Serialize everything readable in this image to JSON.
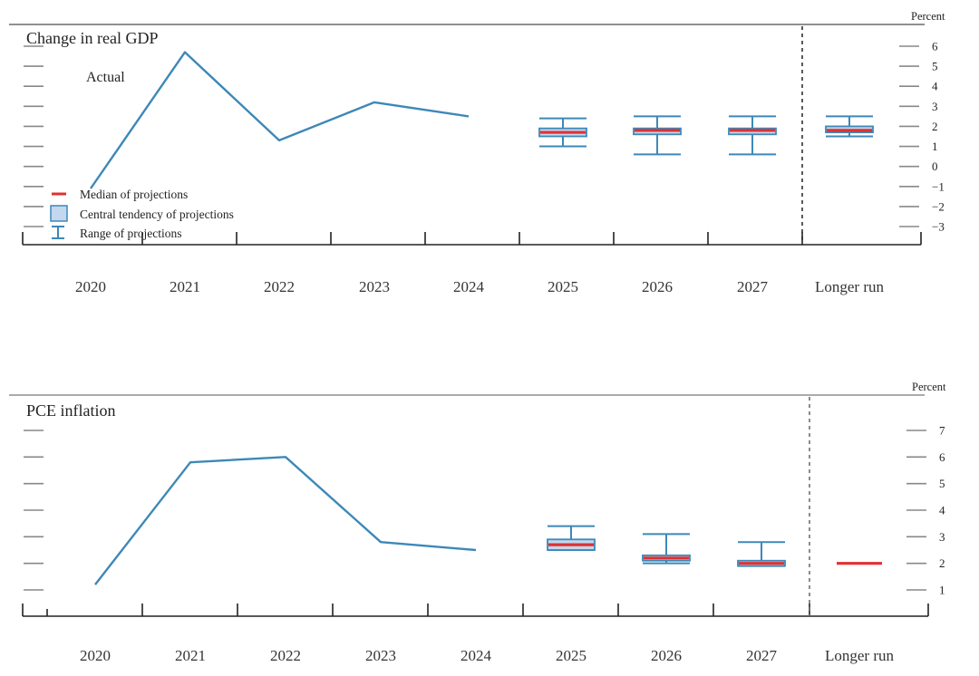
{
  "colors": {
    "line": "#3d88b8",
    "median": "#e03131",
    "box_fill": "#c3d7ee",
    "box_stroke": "#3d88b8",
    "axis": "#222222",
    "gridtick": "#888888"
  },
  "legend": {
    "median_label": "Median of projections",
    "central_label": "Central tendency of projections",
    "range_label": "Range of projections"
  },
  "chart_data": [
    {
      "type": "line",
      "title": "Change in real GDP",
      "unit_label": "Percent",
      "annotation": "Actual",
      "categories": [
        "2020",
        "2021",
        "2022",
        "2023",
        "2024",
        "2025",
        "2026",
        "2027",
        "Longer run"
      ],
      "ylim": [
        -3,
        6
      ],
      "yticks": [
        6,
        5,
        4,
        3,
        2,
        1,
        0,
        -1,
        -2,
        -3
      ],
      "ytick_labels": [
        "6",
        "5",
        "4",
        "3",
        "2",
        "1",
        "0",
        "−1",
        "−2",
        "−3"
      ],
      "actual": [
        -1.1,
        5.7,
        1.3,
        3.2,
        2.5
      ],
      "projections": [
        {
          "category": "2025",
          "median": 1.7,
          "central": [
            1.5,
            1.9
          ],
          "range": [
            1.0,
            2.4
          ]
        },
        {
          "category": "2026",
          "median": 1.8,
          "central": [
            1.6,
            1.9
          ],
          "range": [
            0.6,
            2.5
          ]
        },
        {
          "category": "2027",
          "median": 1.8,
          "central": [
            1.6,
            1.9
          ],
          "range": [
            0.6,
            2.5
          ]
        },
        {
          "category": "Longer run",
          "median": 1.8,
          "central": [
            1.7,
            2.0
          ],
          "range": [
            1.5,
            2.5
          ]
        }
      ],
      "legend_position": "bottom-left"
    },
    {
      "type": "line",
      "title": "PCE inflation",
      "unit_label": "Percent",
      "categories": [
        "2020",
        "2021",
        "2022",
        "2023",
        "2024",
        "2025",
        "2026",
        "2027",
        "Longer run"
      ],
      "ylim": [
        1,
        7
      ],
      "yticks": [
        7,
        6,
        5,
        4,
        3,
        2,
        1
      ],
      "ytick_labels": [
        "7",
        "6",
        "5",
        "4",
        "3",
        "2",
        "1"
      ],
      "actual": [
        1.2,
        5.8,
        6.0,
        2.8,
        2.5
      ],
      "projections": [
        {
          "category": "2025",
          "median": 2.7,
          "central": [
            2.5,
            2.9
          ],
          "range": [
            2.5,
            3.4
          ]
        },
        {
          "category": "2026",
          "median": 2.2,
          "central": [
            2.1,
            2.3
          ],
          "range": [
            2.0,
            3.1
          ]
        },
        {
          "category": "2027",
          "median": 2.0,
          "central": [
            1.9,
            2.1
          ],
          "range": [
            1.9,
            2.8
          ]
        },
        {
          "category": "Longer run",
          "median": 2.0,
          "central": [
            2.0,
            2.0
          ],
          "range": [
            2.0,
            2.0
          ]
        }
      ]
    }
  ]
}
